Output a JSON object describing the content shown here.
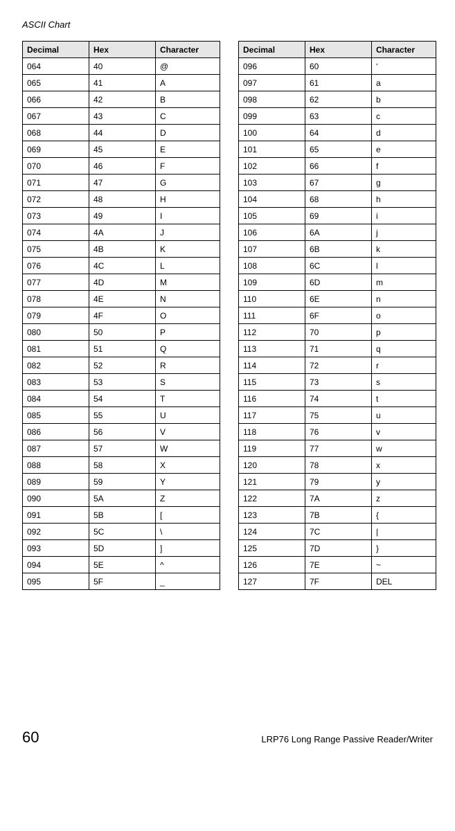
{
  "header": {
    "title": "ASCII Chart"
  },
  "columns": {
    "decimal": "Decimal",
    "hex": "Hex",
    "character": "Character"
  },
  "left": [
    {
      "dec": "064",
      "hex": "40",
      "chr": "@"
    },
    {
      "dec": "065",
      "hex": "41",
      "chr": "A"
    },
    {
      "dec": "066",
      "hex": "42",
      "chr": "B"
    },
    {
      "dec": "067",
      "hex": "43",
      "chr": "C"
    },
    {
      "dec": "068",
      "hex": "44",
      "chr": "D"
    },
    {
      "dec": "069",
      "hex": "45",
      "chr": "E"
    },
    {
      "dec": "070",
      "hex": "46",
      "chr": "F"
    },
    {
      "dec": "071",
      "hex": "47",
      "chr": "G"
    },
    {
      "dec": "072",
      "hex": "48",
      "chr": "H"
    },
    {
      "dec": "073",
      "hex": "49",
      "chr": "I"
    },
    {
      "dec": "074",
      "hex": "4A",
      "chr": "J"
    },
    {
      "dec": "075",
      "hex": "4B",
      "chr": "K"
    },
    {
      "dec": "076",
      "hex": "4C",
      "chr": "L"
    },
    {
      "dec": "077",
      "hex": "4D",
      "chr": "M"
    },
    {
      "dec": "078",
      "hex": "4E",
      "chr": "N"
    },
    {
      "dec": "079",
      "hex": "4F",
      "chr": "O"
    },
    {
      "dec": "080",
      "hex": "50",
      "chr": "P"
    },
    {
      "dec": "081",
      "hex": "51",
      "chr": "Q"
    },
    {
      "dec": "082",
      "hex": "52",
      "chr": "R"
    },
    {
      "dec": "083",
      "hex": "53",
      "chr": "S"
    },
    {
      "dec": "084",
      "hex": "54",
      "chr": "T"
    },
    {
      "dec": "085",
      "hex": "55",
      "chr": "U"
    },
    {
      "dec": "086",
      "hex": "56",
      "chr": "V"
    },
    {
      "dec": "087",
      "hex": "57",
      "chr": "W"
    },
    {
      "dec": "088",
      "hex": "58",
      "chr": "X"
    },
    {
      "dec": "089",
      "hex": "59",
      "chr": "Y"
    },
    {
      "dec": "090",
      "hex": "5A",
      "chr": "Z"
    },
    {
      "dec": "091",
      "hex": "5B",
      "chr": "["
    },
    {
      "dec": "092",
      "hex": "5C",
      "chr": "\\"
    },
    {
      "dec": "093",
      "hex": "5D",
      "chr": "]"
    },
    {
      "dec": "094",
      "hex": "5E",
      "chr": "^"
    },
    {
      "dec": "095",
      "hex": "5F",
      "chr": "_"
    }
  ],
  "right": [
    {
      "dec": "096",
      "hex": "60",
      "chr": "‘"
    },
    {
      "dec": "097",
      "hex": "61",
      "chr": "a"
    },
    {
      "dec": "098",
      "hex": "62",
      "chr": "b"
    },
    {
      "dec": "099",
      "hex": "63",
      "chr": "c"
    },
    {
      "dec": "100",
      "hex": "64",
      "chr": "d"
    },
    {
      "dec": "101",
      "hex": "65",
      "chr": "e"
    },
    {
      "dec": "102",
      "hex": "66",
      "chr": "f"
    },
    {
      "dec": "103",
      "hex": "67",
      "chr": "g"
    },
    {
      "dec": "104",
      "hex": "68",
      "chr": "h"
    },
    {
      "dec": "105",
      "hex": "69",
      "chr": "i"
    },
    {
      "dec": "106",
      "hex": "6A",
      "chr": "j"
    },
    {
      "dec": "107",
      "hex": "6B",
      "chr": "k"
    },
    {
      "dec": "108",
      "hex": "6C",
      "chr": "l"
    },
    {
      "dec": "109",
      "hex": "6D",
      "chr": "m"
    },
    {
      "dec": "110",
      "hex": "6E",
      "chr": "n"
    },
    {
      "dec": "111",
      "hex": "6F",
      "chr": "o"
    },
    {
      "dec": "112",
      "hex": "70",
      "chr": "p"
    },
    {
      "dec": "113",
      "hex": "71",
      "chr": "q"
    },
    {
      "dec": "114",
      "hex": "72",
      "chr": "r"
    },
    {
      "dec": "115",
      "hex": "73",
      "chr": "s"
    },
    {
      "dec": "116",
      "hex": "74",
      "chr": "t"
    },
    {
      "dec": "117",
      "hex": "75",
      "chr": "u"
    },
    {
      "dec": "118",
      "hex": "76",
      "chr": "v"
    },
    {
      "dec": "119",
      "hex": "77",
      "chr": "w"
    },
    {
      "dec": "120",
      "hex": "78",
      "chr": "x"
    },
    {
      "dec": "121",
      "hex": "79",
      "chr": "y"
    },
    {
      "dec": "122",
      "hex": "7A",
      "chr": "z"
    },
    {
      "dec": "123",
      "hex": "7B",
      "chr": "{"
    },
    {
      "dec": "124",
      "hex": "7C",
      "chr": "|"
    },
    {
      "dec": "125",
      "hex": "7D",
      "chr": "}"
    },
    {
      "dec": "126",
      "hex": "7E",
      "chr": "~"
    },
    {
      "dec": "127",
      "hex": "7F",
      "chr": "DEL"
    }
  ],
  "footer": {
    "page": "60",
    "product": "LRP76 Long Range Passive Reader/Writer"
  }
}
